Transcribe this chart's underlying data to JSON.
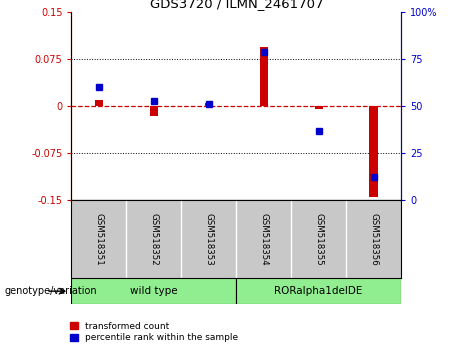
{
  "title": "GDS3720 / ILMN_2461707",
  "categories": [
    "GSM518351",
    "GSM518352",
    "GSM518353",
    "GSM518354",
    "GSM518355",
    "GSM518356"
  ],
  "red_values": [
    0.01,
    -0.015,
    0.005,
    0.095,
    -0.005,
    -0.145
  ],
  "blue_values_pct": [
    60,
    53,
    51,
    79,
    37,
    12
  ],
  "ylim_left": [
    -0.15,
    0.15
  ],
  "ylim_right": [
    0,
    100
  ],
  "yticks_left": [
    -0.15,
    -0.075,
    0,
    0.075,
    0.15
  ],
  "yticks_right": [
    0,
    25,
    50,
    75,
    100
  ],
  "ytick_labels_left": [
    "-0.15",
    "-0.075",
    "0",
    "0.075",
    "0.15"
  ],
  "ytick_labels_right": [
    "0",
    "25",
    "50",
    "75",
    "100%"
  ],
  "dotted_lines": [
    -0.075,
    0.075
  ],
  "legend": [
    {
      "label": "transformed count",
      "color": "#cc0000"
    },
    {
      "label": "percentile rank within the sample",
      "color": "#0000cc"
    }
  ],
  "bar_width": 0.15,
  "red_color": "#cc0000",
  "blue_color": "#0000cc",
  "dashed_zero_color": "#cc0000",
  "group_label": "genotype/variation",
  "wild_type_label": "wild type",
  "ror_label": "RORalpha1delDE",
  "group_color": "#90EE90",
  "xtick_bg": "#c8c8c8"
}
